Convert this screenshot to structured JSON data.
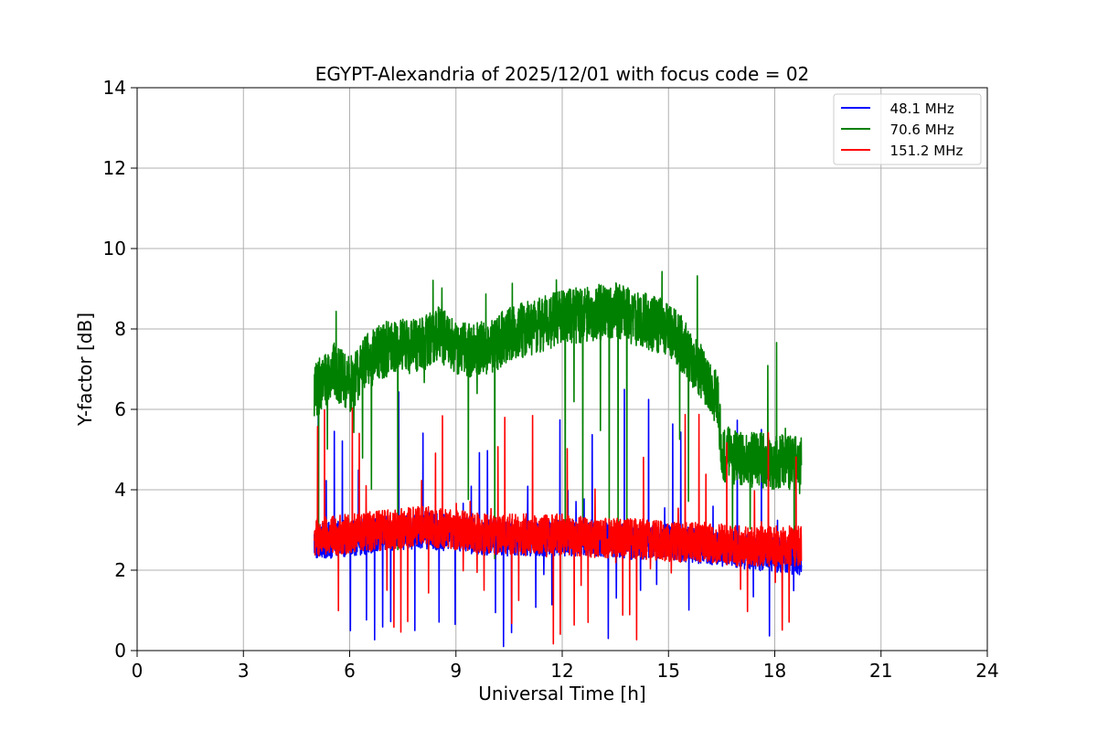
{
  "chart_data": {
    "type": "line",
    "title": "EGYPT-Alexandria of 2025/12/01 with focus code = 02",
    "xlabel": "Universal Time [h]",
    "ylabel": "Y-factor [dB]",
    "xlim": [
      0,
      24
    ],
    "ylim": [
      0,
      14
    ],
    "xticks": [
      0,
      3,
      6,
      9,
      12,
      15,
      18,
      21,
      24
    ],
    "yticks": [
      0,
      2,
      4,
      6,
      8,
      10,
      12,
      14
    ],
    "grid": true,
    "legend_position": "top-right",
    "series": [
      {
        "name": "  48.1 MHz",
        "color": "#0000ff",
        "x_range": [
          5.0,
          18.75
        ],
        "trend_x": [
          5.0,
          6.0,
          7.0,
          8.0,
          9.0,
          10.0,
          11.0,
          12.0,
          13.0,
          14.0,
          15.0,
          16.0,
          17.0,
          18.0,
          18.75
        ],
        "trend_y": [
          2.7,
          2.8,
          2.9,
          3.0,
          2.9,
          2.8,
          2.8,
          2.8,
          2.8,
          2.7,
          2.7,
          2.6,
          2.5,
          2.4,
          2.3
        ],
        "noise_amplitude": 0.45,
        "spike_count": 60,
        "spike_range": [
          0.1,
          6.7
        ]
      },
      {
        "name": "  70.6 MHz",
        "color": "#008000",
        "x_range": [
          5.0,
          18.75
        ],
        "trend_x": [
          5.0,
          5.5,
          6.0,
          6.5,
          7.0,
          8.0,
          8.5,
          9.0,
          10.0,
          10.5,
          11.0,
          12.0,
          13.0,
          13.5,
          14.0,
          15.0,
          15.5,
          16.0,
          16.4,
          16.5,
          17.0,
          18.0,
          18.75
        ],
        "trend_y": [
          6.4,
          7.0,
          6.6,
          7.2,
          7.5,
          7.6,
          7.9,
          7.5,
          7.5,
          7.9,
          8.0,
          8.3,
          8.4,
          8.5,
          8.3,
          8.0,
          7.5,
          6.8,
          6.2,
          4.9,
          4.8,
          4.7,
          4.6
        ],
        "noise_amplitude": 0.7,
        "spike_count": 55,
        "spike_range": [
          2.2,
          9.5
        ]
      },
      {
        "name": "  151.2 MHz",
        "color": "#ff0000",
        "x_range": [
          5.0,
          18.75
        ],
        "trend_x": [
          5.0,
          6.0,
          7.0,
          8.0,
          9.0,
          10.0,
          11.0,
          12.0,
          13.0,
          14.0,
          15.0,
          16.0,
          17.0,
          18.0,
          18.75
        ],
        "trend_y": [
          2.8,
          2.9,
          3.0,
          3.1,
          3.0,
          2.9,
          2.9,
          2.9,
          2.8,
          2.8,
          2.7,
          2.7,
          2.6,
          2.6,
          2.6
        ],
        "noise_amplitude": 0.5,
        "spike_count": 70,
        "spike_range": [
          0.1,
          6.1
        ]
      }
    ]
  }
}
